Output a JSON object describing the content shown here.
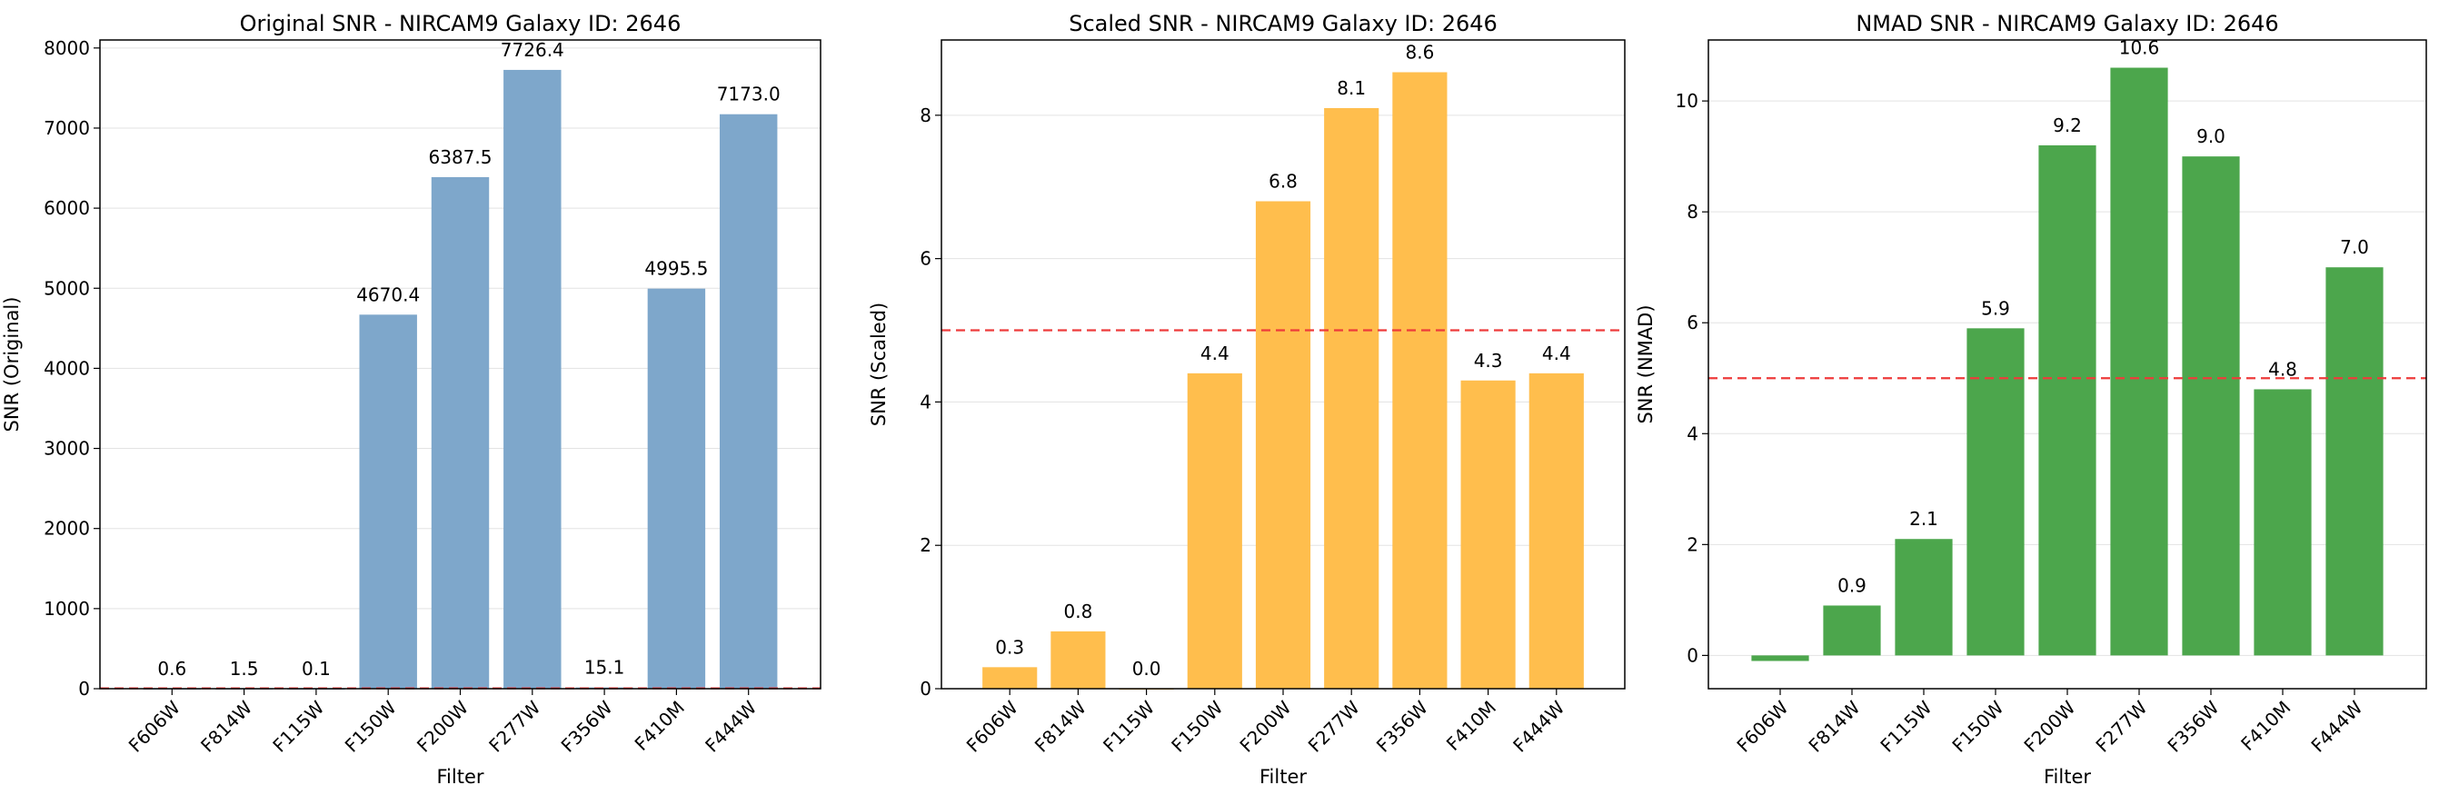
{
  "chart_data": [
    {
      "type": "bar",
      "title": "Original SNR - NIRCAM9 Galaxy ID: 2646",
      "xlabel": "Filter",
      "ylabel": "SNR (Original)",
      "categories": [
        "F606W",
        "F814W",
        "F115W",
        "F150W",
        "F200W",
        "F277W",
        "F356W",
        "F410M",
        "F444W"
      ],
      "values": [
        0.6,
        1.5,
        0.1,
        4670.4,
        6387.5,
        7726.4,
        15.1,
        4995.5,
        7173.0
      ],
      "labels": [
        "0.6",
        "1.5",
        "0.1",
        "4670.4",
        "6387.5",
        "7726.4",
        "15.1",
        "4995.5",
        "7173.0"
      ],
      "ylim": [
        0,
        8100
      ],
      "yticks": [
        0,
        1000,
        2000,
        3000,
        4000,
        5000,
        6000,
        7000,
        8000
      ],
      "threshold": 5,
      "color": "#7ea7cb",
      "grid": "y"
    },
    {
      "type": "bar",
      "title": "Scaled SNR - NIRCAM9 Galaxy ID: 2646",
      "xlabel": "Filter",
      "ylabel": "SNR (Scaled)",
      "categories": [
        "F606W",
        "F814W",
        "F115W",
        "F150W",
        "F200W",
        "F277W",
        "F356W",
        "F410M",
        "F444W"
      ],
      "values": [
        0.3,
        0.8,
        0.0,
        4.4,
        6.8,
        8.1,
        8.6,
        4.3,
        4.4
      ],
      "labels": [
        "0.3",
        "0.8",
        "0.0",
        "4.4",
        "6.8",
        "8.1",
        "8.6",
        "4.3",
        "4.4"
      ],
      "ylim": [
        0,
        9.05
      ],
      "yticks": [
        0,
        2,
        4,
        6,
        8
      ],
      "threshold": 5,
      "color": "#ffbe4d",
      "grid": "y"
    },
    {
      "type": "bar",
      "title": "NMAD SNR - NIRCAM9 Galaxy ID: 2646",
      "xlabel": "Filter",
      "ylabel": "SNR (NMAD)",
      "categories": [
        "F606W",
        "F814W",
        "F115W",
        "F150W",
        "F200W",
        "F277W",
        "F356W",
        "F410M",
        "F444W"
      ],
      "values": [
        -0.1,
        0.9,
        2.1,
        5.9,
        9.2,
        10.6,
        9.0,
        4.8,
        7.0
      ],
      "labels": [
        "",
        "0.9",
        "2.1",
        "5.9",
        "9.2",
        "10.6",
        "9.0",
        "4.8",
        "7.0"
      ],
      "ylim": [
        -0.6,
        11.1
      ],
      "yticks": [
        0,
        2,
        4,
        6,
        8,
        10
      ],
      "threshold": 5,
      "color": "#4ca64c",
      "grid": "y"
    }
  ]
}
